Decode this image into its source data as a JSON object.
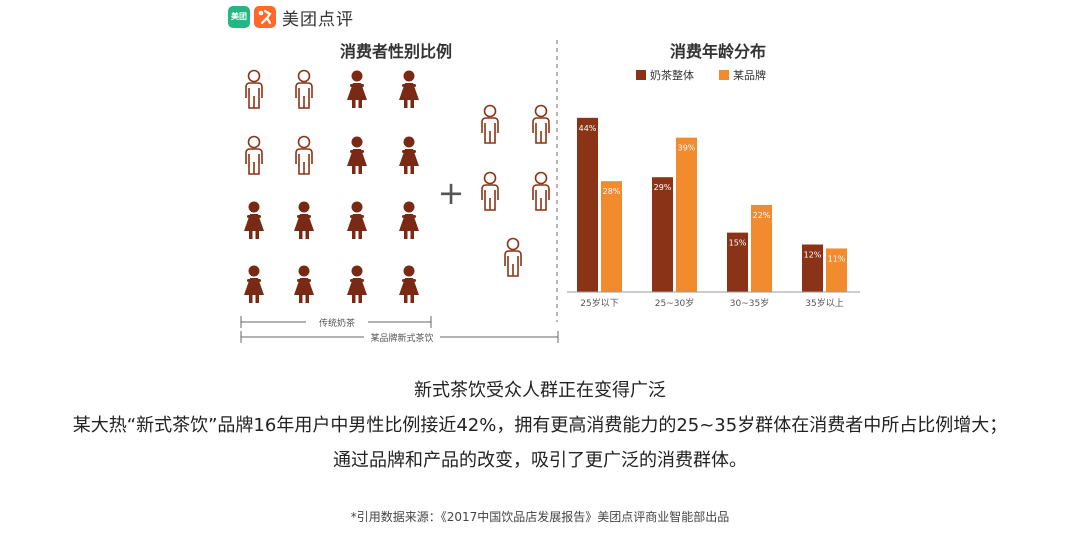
{
  "logo": {
    "icon_left_text": "美团",
    "brand": "美团点评"
  },
  "gender_panel": {
    "title": "消费者性别比例",
    "traditional_label": "传统奶茶",
    "brand_label": "某品牌新式茶饮",
    "plus_symbol": "+"
  },
  "chart_data": {
    "type": "bar",
    "title": "消费年龄分布",
    "categories": [
      "25岁以下",
      "25~30岁",
      "30~35岁",
      "35岁以上"
    ],
    "series": [
      {
        "name": "奶茶整体",
        "values": [
          44,
          29,
          15,
          12
        ],
        "labels": [
          "44%",
          "29%",
          "15%",
          "12%"
        ]
      },
      {
        "name": "某品牌",
        "values": [
          28,
          39,
          22,
          11
        ],
        "labels": [
          "28%",
          "39%",
          "22%",
          "11%"
        ]
      }
    ],
    "legend_position": "top-left",
    "grid": false,
    "ylim": [
      0,
      48
    ],
    "colors": [
      "#8b3316",
      "#f28a2e"
    ]
  },
  "caption": {
    "title": "新式茶饮受众人群正在变得广泛",
    "line1": "某大热“新式茶饮”品牌16年用户中男性比例接近42%，拥有更高消费能力的25~35岁群体在消费者中所占比例增大；",
    "line2": "通过品牌和产品的改变，吸引了更广泛的消费群体。",
    "source": "*引用数据来源：《2017中国饮品店发展报告》美团点评商业智能部出品"
  },
  "colors": {
    "female_icon": "#7a2a14",
    "male_outline": "#8b3316",
    "logo_green": "#26b585",
    "logo_orange": "#ff6a2b"
  },
  "icons": {
    "male": "male-person-icon",
    "female": "female-person-icon"
  }
}
